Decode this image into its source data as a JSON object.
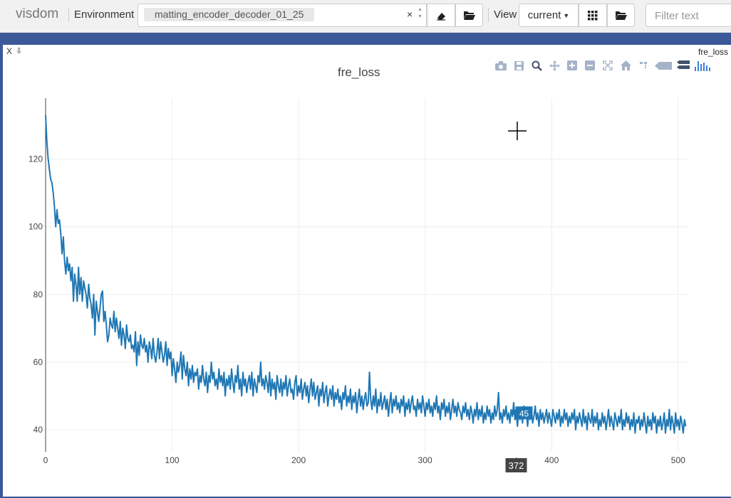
{
  "navbar": {
    "brand": "visdom",
    "environment_label": "Environment",
    "environment_value": "matting_encoder_decoder_01_25",
    "clear_glyph": "×",
    "view_label": "View",
    "view_value": "current",
    "filter_placeholder": "Filter text"
  },
  "pane": {
    "close_label": "X",
    "download_label": "⇩",
    "title": "fre_loss"
  },
  "chart_data": {
    "type": "line",
    "title": "fre_loss",
    "xlabel": "",
    "ylabel": "",
    "xlim": [
      0,
      508
    ],
    "ylim": [
      33.5,
      138
    ],
    "x_ticks": [
      0,
      100,
      200,
      300,
      400,
      500
    ],
    "y_ticks": [
      40,
      60,
      80,
      100,
      120
    ],
    "grid": true,
    "color": "#1f77b4",
    "series": [
      {
        "x_start": 0,
        "x_step": 1,
        "values": [
          133,
          125,
          120,
          117,
          114,
          113,
          110,
          106,
          100,
          105,
          101,
          102,
          98,
          92,
          97,
          90,
          86,
          91,
          87,
          89,
          84,
          88,
          78,
          86,
          83,
          78,
          88,
          80,
          85,
          78,
          84,
          82,
          80,
          76,
          83,
          79,
          77,
          73,
          80,
          68,
          78,
          75,
          72,
          76,
          80,
          81,
          72,
          75,
          71,
          66,
          68,
          73,
          71,
          70,
          75,
          69,
          73,
          70,
          67,
          72,
          65,
          70,
          68,
          64,
          71,
          67,
          66,
          68,
          64,
          65,
          63,
          69,
          59,
          66,
          62,
          68,
          65,
          64,
          67,
          63,
          65,
          60,
          66,
          64,
          61,
          67,
          62,
          60,
          63,
          67,
          61,
          66,
          63,
          60,
          62,
          66,
          59,
          64,
          61,
          63,
          56,
          61,
          58,
          54,
          60,
          57,
          59,
          63,
          55,
          62,
          58,
          56,
          60,
          53,
          58,
          55,
          59,
          54,
          57,
          56,
          58,
          52,
          56,
          54,
          59,
          55,
          53,
          57,
          51,
          56,
          54,
          60,
          55,
          57,
          53,
          55,
          52,
          58,
          54,
          56,
          53,
          57,
          50,
          55,
          53,
          56,
          52,
          58,
          54,
          51,
          56,
          54,
          59,
          52,
          55,
          50,
          57,
          53,
          55,
          51,
          54,
          56,
          52,
          57,
          50,
          55,
          53,
          51,
          56,
          54,
          60,
          53,
          55,
          52,
          56,
          54,
          51,
          57,
          50,
          55,
          52,
          54,
          49,
          56,
          53,
          51,
          55,
          50,
          54,
          52,
          56,
          50,
          53,
          55,
          51,
          52,
          49,
          54,
          56,
          50,
          53,
          51,
          55,
          49,
          52,
          54,
          50,
          53,
          48,
          52,
          55,
          50,
          54,
          49,
          51,
          53,
          47,
          52,
          50,
          54,
          48,
          51,
          53,
          47,
          50,
          52,
          49,
          53,
          47,
          51,
          49,
          52,
          48,
          50,
          46,
          51,
          49,
          53,
          47,
          50,
          48,
          52,
          46,
          50,
          48,
          51,
          45,
          49,
          52,
          47,
          50,
          46,
          49,
          51,
          47,
          48,
          57,
          49,
          46,
          50,
          47,
          52,
          45,
          49,
          47,
          51,
          46,
          48,
          50,
          46,
          49,
          44,
          48,
          51,
          45,
          49,
          47,
          50,
          46,
          48,
          45,
          49,
          47,
          50,
          44,
          48,
          46,
          49,
          45,
          48,
          50,
          46,
          47,
          44,
          49,
          46,
          48,
          45,
          50,
          47,
          44,
          48,
          46,
          49,
          45,
          47,
          44,
          48,
          46,
          50,
          45,
          47,
          43,
          48,
          46,
          49,
          44,
          47,
          45,
          48,
          43,
          46,
          49,
          45,
          47,
          44,
          48,
          46,
          45,
          43,
          47,
          45,
          48,
          44,
          46,
          43,
          47,
          45,
          42,
          46,
          44,
          48,
          43,
          46,
          44,
          47,
          42,
          45,
          43,
          47,
          44,
          46,
          42,
          45,
          43,
          47,
          44,
          46,
          51,
          43,
          45,
          42,
          46,
          44,
          47,
          43,
          45,
          42,
          46,
          44,
          48,
          43,
          45,
          41,
          46,
          43,
          45,
          42,
          47,
          44,
          46,
          41,
          45,
          43,
          46,
          42,
          44,
          47,
          43,
          45,
          41,
          46,
          43,
          45,
          42,
          44,
          46,
          42,
          45,
          43,
          41,
          46,
          44,
          42,
          45,
          43,
          46,
          41,
          44,
          42,
          46,
          43,
          45,
          41,
          44,
          42,
          45,
          43,
          46,
          40,
          44,
          42,
          45,
          43,
          41,
          46,
          42,
          44,
          40,
          45,
          43,
          42,
          46,
          41,
          44,
          42,
          45,
          40,
          43,
          41,
          45,
          42,
          44,
          40,
          43,
          46,
          41,
          44,
          42,
          40,
          45,
          43,
          41,
          44,
          42,
          46,
          40,
          43,
          41,
          45,
          42,
          44,
          40,
          43,
          41,
          45,
          39,
          43,
          42,
          44,
          40,
          43,
          41,
          45,
          42,
          39,
          44,
          41,
          43,
          40,
          45,
          42,
          44,
          39,
          43,
          41,
          44,
          40,
          42,
          45,
          39,
          43,
          41,
          46,
          40,
          44,
          42,
          39,
          45,
          41,
          43,
          40,
          44,
          42,
          39,
          43,
          41
        ]
      }
    ],
    "hover": {
      "x": "372",
      "y": "45"
    }
  }
}
